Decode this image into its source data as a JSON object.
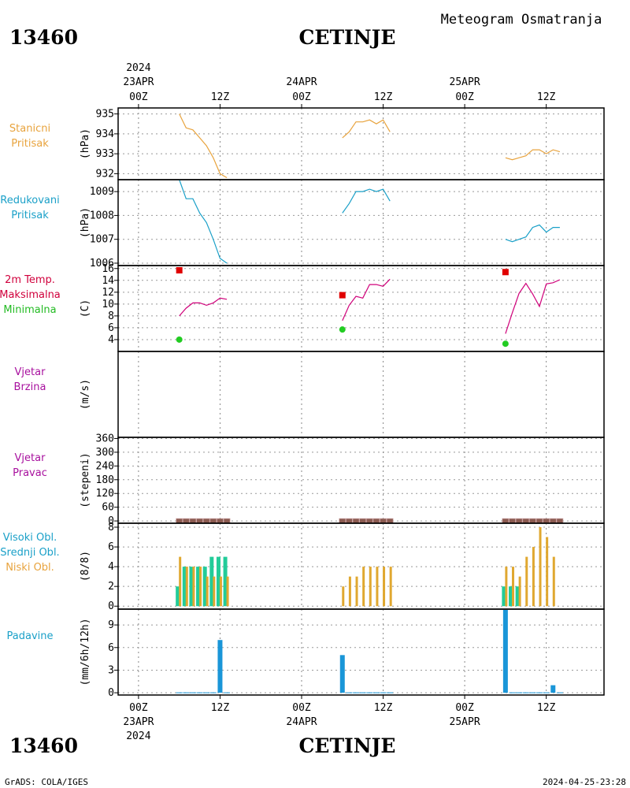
{
  "header": {
    "station_id": "13460",
    "station_name": "CETINJE",
    "title": "Meteogram Osmatranja"
  },
  "footer": {
    "credit": "GrADS: COLA/IGES",
    "timestamp": "2024-04-25-23:28"
  },
  "top_axis": {
    "year": "2024",
    "dates": [
      {
        "hour": 0,
        "date": "23APR",
        "hlabel": "00Z"
      },
      {
        "hour": 24,
        "date": "24APR",
        "hlabel": "00Z"
      },
      {
        "hour": 48,
        "date": "25APR",
        "hlabel": "00Z"
      }
    ],
    "noon_hours": [
      12,
      36,
      60
    ],
    "noon_label": "12Z"
  },
  "bottom_axis": {
    "year": "2024",
    "dates": [
      {
        "hour": 0,
        "date": "23APR",
        "hlabel": "00Z"
      },
      {
        "hour": 24,
        "date": "24APR",
        "hlabel": "00Z"
      },
      {
        "hour": 48,
        "date": "25APR",
        "hlabel": "00Z"
      }
    ],
    "noon_hours": [
      12,
      36,
      60
    ],
    "noon_label": "12Z"
  },
  "chart_data": [
    {
      "type": "line",
      "panel": "station-pressure",
      "labels": [
        "Stanicni",
        "Pritisak"
      ],
      "label_color": "#e8a33d",
      "unit": "(hPa)",
      "ylim": [
        931.7,
        935.3
      ],
      "yticks": [
        932,
        933,
        934,
        935
      ],
      "color": "#e8a33d",
      "segments": [
        {
          "x": [
            6,
            7,
            8,
            9,
            10,
            11,
            12,
            13
          ],
          "y": [
            935.0,
            934.3,
            934.2,
            933.8,
            933.4,
            932.8,
            932.0,
            931.8
          ]
        },
        {
          "x": [
            30,
            31,
            32,
            33,
            34,
            35,
            36,
            37
          ],
          "y": [
            933.8,
            934.1,
            934.6,
            934.6,
            934.7,
            934.5,
            934.7,
            934.1
          ]
        },
        {
          "x": [
            54,
            55,
            56,
            57,
            58,
            59,
            60,
            61,
            62
          ],
          "y": [
            932.8,
            932.7,
            932.8,
            932.9,
            933.2,
            933.2,
            933.0,
            933.2,
            933.1
          ]
        }
      ]
    },
    {
      "type": "line",
      "panel": "reduced-pressure",
      "labels": [
        "Redukovani",
        "Pritisak"
      ],
      "label_color": "#1aa0c8",
      "unit": "(hPa)",
      "ylim": [
        1005.9,
        1009.5
      ],
      "yticks": [
        1006,
        1007,
        1008,
        1009
      ],
      "color": "#1aa0c8",
      "segments": [
        {
          "x": [
            6,
            7,
            8,
            9,
            10,
            11,
            12,
            13
          ],
          "y": [
            1009.5,
            1008.7,
            1008.7,
            1008.1,
            1007.7,
            1007.0,
            1006.2,
            1006.0
          ]
        },
        {
          "x": [
            30,
            31,
            32,
            33,
            34,
            35,
            36,
            37
          ],
          "y": [
            1008.1,
            1008.5,
            1009.0,
            1009.0,
            1009.1,
            1009.0,
            1009.1,
            1008.6
          ]
        },
        {
          "x": [
            54,
            55,
            56,
            57,
            58,
            59,
            60,
            61,
            62
          ],
          "y": [
            1007.0,
            1006.9,
            1007.0,
            1007.1,
            1007.5,
            1007.6,
            1007.3,
            1007.5,
            1007.5
          ]
        }
      ]
    },
    {
      "type": "line",
      "panel": "temperature",
      "labels": [
        "2m Temp.",
        "Maksimalna",
        "Minimalna"
      ],
      "label_colors": [
        "#d0003c",
        "#d0003c",
        "#22bb22"
      ],
      "unit": "(C)",
      "ylim": [
        2,
        16.5
      ],
      "yticks": [
        4,
        6,
        8,
        10,
        12,
        14,
        16
      ],
      "color": "#d0007a",
      "segments": [
        {
          "x": [
            6,
            7,
            8,
            9,
            10,
            11,
            12,
            13
          ],
          "y": [
            8.0,
            9.3,
            10.2,
            10.2,
            9.8,
            10.2,
            11.0,
            10.8
          ]
        },
        {
          "x": [
            30,
            31,
            32,
            33,
            34,
            35,
            36,
            37
          ],
          "y": [
            7.2,
            9.8,
            11.3,
            11.0,
            13.3,
            13.3,
            13.0,
            14.2
          ]
        },
        {
          "x": [
            54,
            55,
            56,
            57,
            58,
            59,
            60,
            61,
            62
          ],
          "y": [
            5.0,
            8.5,
            11.8,
            13.5,
            11.7,
            9.6,
            13.4,
            13.6,
            14.1
          ]
        }
      ],
      "maxima": {
        "color": "#e00000",
        "x": [
          6,
          30,
          54
        ],
        "y": [
          15.7,
          11.5,
          15.4
        ]
      },
      "minima": {
        "color": "#22cc22",
        "x": [
          6,
          30,
          54
        ],
        "y": [
          4.0,
          5.7,
          3.3
        ]
      }
    },
    {
      "type": "line",
      "panel": "wind-speed",
      "labels": [
        "Vjetar",
        "Brzina"
      ],
      "label_color": "#a8109e",
      "unit": "(m/s)",
      "yticks": [],
      "segments": []
    },
    {
      "type": "scatter",
      "panel": "wind-direction",
      "labels": [
        "Vjetar",
        "Pravac"
      ],
      "label_color": "#a8109e",
      "unit": "(stepeni)",
      "ylim": [
        -10,
        365
      ],
      "yticks": [
        0,
        60,
        120,
        180,
        240,
        300,
        360
      ],
      "color": "#8a5a50",
      "x": [
        6,
        7,
        8,
        9,
        10,
        11,
        12,
        13,
        30,
        31,
        32,
        33,
        34,
        35,
        36,
        37,
        54,
        55,
        56,
        57,
        58,
        59,
        60,
        61,
        62
      ],
      "y": [
        0,
        0,
        0,
        0,
        0,
        0,
        0,
        0,
        0,
        0,
        0,
        0,
        0,
        0,
        0,
        0,
        0,
        0,
        0,
        0,
        0,
        0,
        0,
        0,
        0
      ]
    },
    {
      "type": "bar",
      "panel": "cloudiness",
      "labels": [
        "Visoki Obl.",
        "Srednji Obl.",
        "Niski Obl."
      ],
      "label_colors": [
        "#1aa0c8",
        "#1aa0c8",
        "#e8a33d"
      ],
      "unit": "(8/8)",
      "ylim": [
        -0.3,
        8.4
      ],
      "yticks": [
        0,
        2,
        4,
        6,
        8
      ],
      "series": [
        {
          "name": "Srednji Obl.",
          "color": "#22cc99",
          "x": [
            6,
            7,
            8,
            9,
            10,
            11,
            12,
            13,
            30,
            31,
            32,
            33,
            34,
            35,
            36,
            37,
            54,
            55,
            56,
            57,
            58,
            59,
            60,
            61,
            62
          ],
          "values": [
            2,
            4,
            4,
            4,
            4,
            5,
            5,
            5,
            0,
            0,
            0,
            0,
            0,
            0,
            0,
            0,
            2,
            2,
            2,
            0,
            0,
            0,
            0,
            0,
            0
          ]
        },
        {
          "name": "Niski Obl.",
          "color": "#e0a830",
          "x": [
            6,
            7,
            8,
            9,
            10,
            11,
            12,
            13,
            30,
            31,
            32,
            33,
            34,
            35,
            36,
            37,
            54,
            55,
            56,
            57,
            58,
            59,
            60,
            61,
            62
          ],
          "values": [
            5,
            4,
            4,
            4,
            3,
            3,
            3,
            3,
            2,
            3,
            3,
            4,
            4,
            4,
            4,
            4,
            4,
            4,
            3,
            5,
            6,
            8,
            7,
            5,
            0
          ]
        }
      ]
    },
    {
      "type": "bar",
      "panel": "precipitation",
      "labels": [
        "Padavine"
      ],
      "label_color": "#1aa0c8",
      "unit": "(mm/6h/12h)",
      "ylim": [
        -0.3,
        11.1
      ],
      "yticks": [
        0,
        3,
        6,
        9
      ],
      "color": "#1a96d8",
      "x": [
        6,
        7,
        8,
        9,
        10,
        11,
        12,
        13,
        30,
        31,
        32,
        33,
        34,
        35,
        36,
        37,
        54,
        55,
        56,
        57,
        58,
        59,
        60,
        61,
        62
      ],
      "values": [
        0,
        0,
        0,
        0,
        0,
        0,
        7,
        0,
        5,
        0,
        0,
        0,
        0,
        0,
        0,
        0,
        11,
        0,
        0,
        0,
        0,
        0,
        0,
        1,
        0
      ]
    }
  ]
}
